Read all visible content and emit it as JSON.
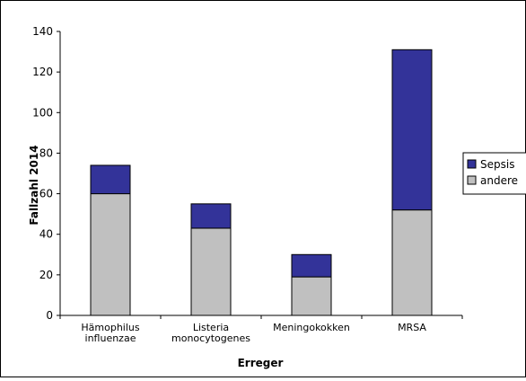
{
  "chart_data": {
    "type": "bar",
    "stacked": true,
    "categories": [
      [
        "Hämophilus",
        "influenzae"
      ],
      [
        "Listeria",
        "monocytogenes"
      ],
      [
        "Meningokokken"
      ],
      [
        "MRSA"
      ]
    ],
    "series": [
      {
        "name": "andere",
        "values": [
          60,
          43,
          19,
          52
        ],
        "color": "#c0c0c0"
      },
      {
        "name": "Sepsis",
        "values": [
          14,
          12,
          11,
          79
        ],
        "color": "#333399"
      }
    ],
    "legend_order": [
      "Sepsis",
      "andere"
    ],
    "xlabel": "Erreger",
    "ylabel": "Fallzahl 2014",
    "ylim": [
      0,
      140
    ],
    "yticks": [
      0,
      20,
      40,
      60,
      80,
      100,
      120,
      140
    ],
    "grid": false,
    "legend_position": "right"
  }
}
